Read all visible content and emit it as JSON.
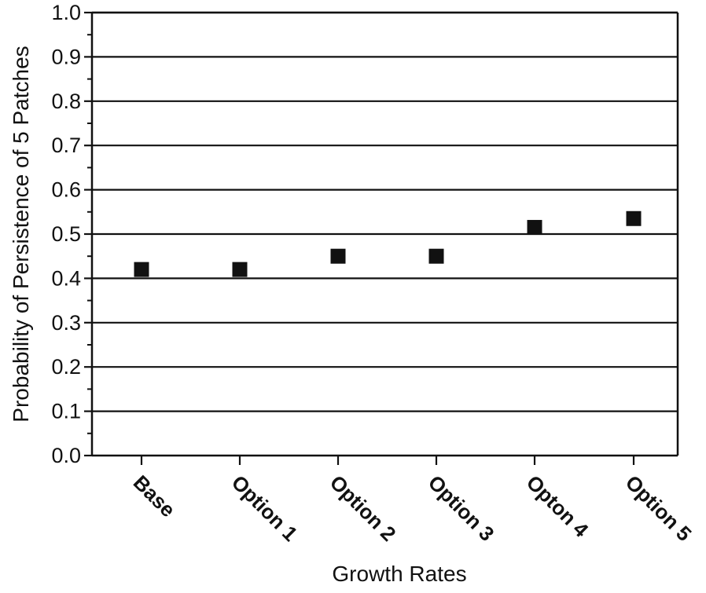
{
  "chart_data": {
    "type": "scatter",
    "title": "",
    "xlabel": "Growth Rates",
    "ylabel": "Probability of Persistence of 5 Patches",
    "categories": [
      "Base",
      "Option 1",
      "Option 2",
      "Option 3",
      "Opton 4",
      "Option 5"
    ],
    "series": [
      {
        "values": [
          0.42,
          0.42,
          0.45,
          0.45,
          0.515,
          0.535
        ]
      }
    ],
    "ylim": [
      0.0,
      1.0
    ],
    "yticks": [
      "0.0",
      "0.1",
      "0.2",
      "0.3",
      "0.4",
      "0.5",
      "0.6",
      "0.7",
      "0.8",
      "0.9",
      "1.0"
    ],
    "grid": "horizontal",
    "marker": "square",
    "colors": {
      "marker": "#111111",
      "grid": "#111111",
      "axis": "#111111"
    }
  }
}
